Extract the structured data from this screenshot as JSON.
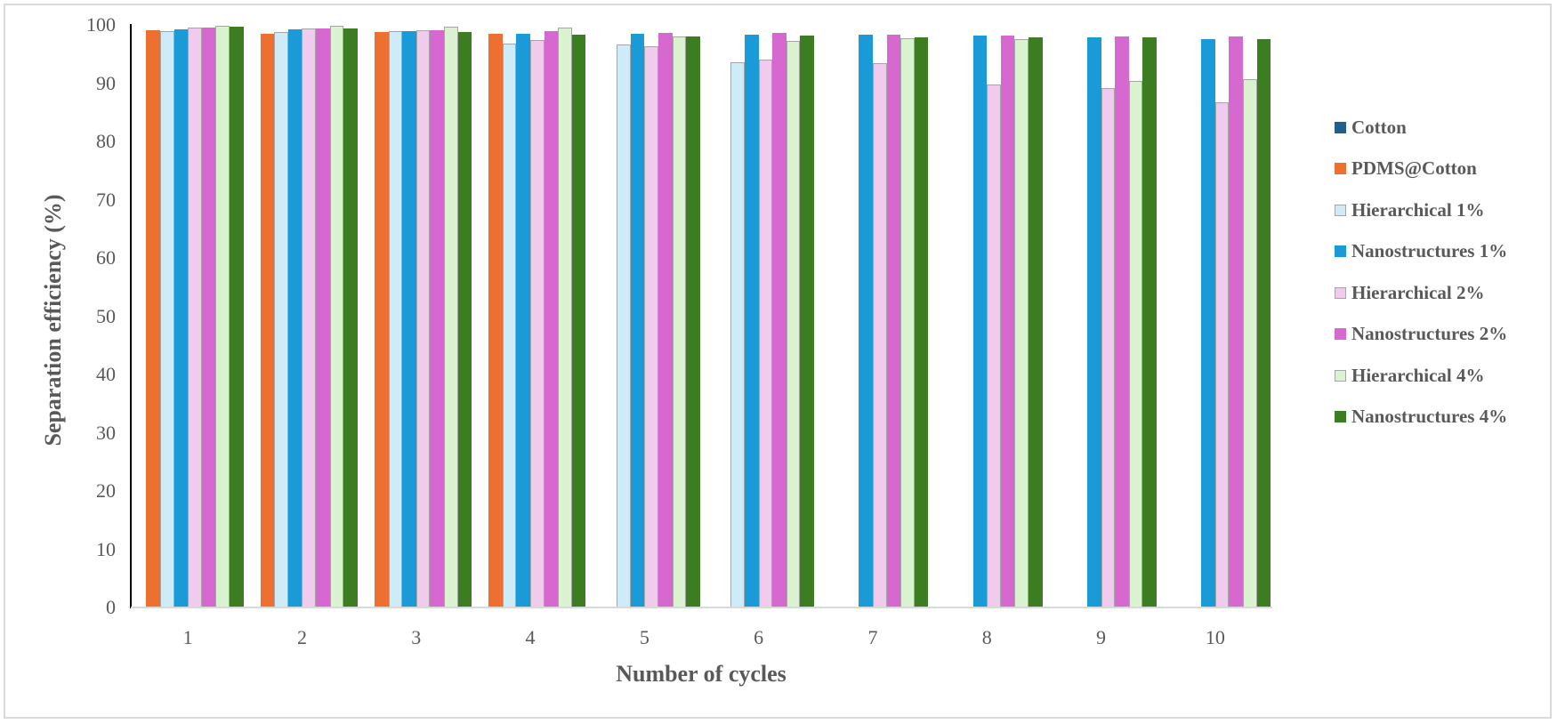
{
  "chart_data": {
    "type": "bar",
    "title": "",
    "xlabel": "Number of cycles",
    "ylabel": "Separation efficiency (%)",
    "ylim": [
      0,
      100
    ],
    "yticks": [
      0,
      10,
      20,
      30,
      40,
      50,
      60,
      70,
      80,
      90,
      100
    ],
    "grid": false,
    "legend_position": "right",
    "categories": [
      "1",
      "2",
      "3",
      "4",
      "5",
      "6",
      "7",
      "8",
      "9",
      "10"
    ],
    "series": [
      {
        "name": "Cotton",
        "color": "#1F5F8B",
        "outlined": false,
        "values": [
          0,
          0,
          0,
          0,
          0,
          0,
          0,
          0,
          0,
          0
        ]
      },
      {
        "name": "PDMS@Cotton",
        "color": "#ED7031",
        "outlined": false,
        "values": [
          99.1,
          98.5,
          98.8,
          98.5,
          0,
          0,
          0,
          0,
          0,
          0
        ]
      },
      {
        "name": "Hierarchical 1%",
        "color": "#CDEBF8",
        "outlined": true,
        "values": [
          99.0,
          98.8,
          98.9,
          96.8,
          96.7,
          93.6,
          0,
          0,
          0,
          0
        ]
      },
      {
        "name": "Nanostructures 1%",
        "color": "#1A9BD7",
        "outlined": false,
        "values": [
          99.3,
          99.2,
          98.9,
          98.5,
          98.4,
          98.3,
          98.3,
          98.1,
          97.9,
          97.5
        ]
      },
      {
        "name": "Hierarchical 2%",
        "color": "#F1CBEE",
        "outlined": true,
        "values": [
          99.5,
          99.4,
          99.1,
          97.4,
          96.3,
          94.0,
          93.4,
          89.8,
          89.2,
          86.7
        ]
      },
      {
        "name": "Nanostructures 2%",
        "color": "#D669CF",
        "outlined": false,
        "values": [
          99.5,
          99.4,
          99.1,
          98.9,
          98.7,
          98.6,
          98.3,
          98.1,
          98.0,
          98.0
        ]
      },
      {
        "name": "Hierarchical 4%",
        "color": "#D9F2D0",
        "outlined": true,
        "values": [
          99.8,
          99.8,
          99.7,
          99.5,
          98.0,
          97.3,
          97.7,
          97.6,
          90.4,
          90.7
        ]
      },
      {
        "name": "Nanostructures 4%",
        "color": "#3C7D22",
        "outlined": false,
        "values": [
          99.7,
          99.4,
          98.8,
          98.3,
          98.0,
          98.1,
          97.9,
          97.9,
          97.9,
          97.5
        ]
      }
    ]
  }
}
